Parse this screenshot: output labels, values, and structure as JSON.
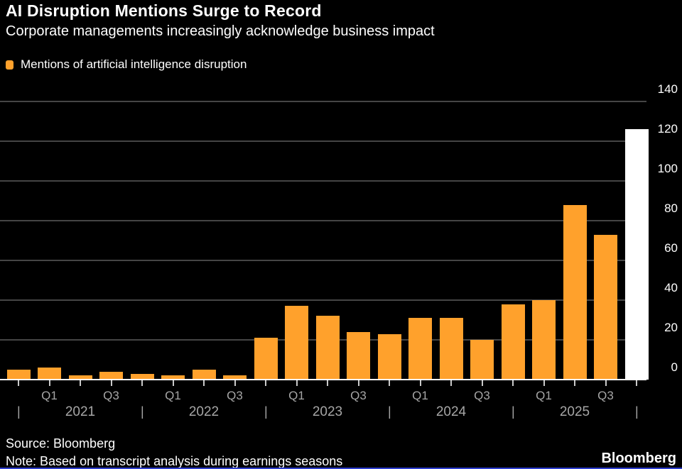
{
  "header": {
    "title": "AI Disruption Mentions Surge to Record",
    "subtitle": "Corporate managements increasingly acknowledge business impact"
  },
  "legend": {
    "label": "Mentions of artificial intelligence disruption",
    "swatch_color": "#FFA12C"
  },
  "chart_data": {
    "type": "bar",
    "title": "AI Disruption Mentions Surge to Record",
    "subtitle": "Corporate managements increasingly acknowledge business impact",
    "series_name": "Mentions of artificial intelligence disruption",
    "categories": [
      "2020 Q4",
      "2021 Q1",
      "2021 Q2",
      "2021 Q3",
      "2021 Q4",
      "2022 Q1",
      "2022 Q2",
      "2022 Q3",
      "2022 Q4",
      "2023 Q1",
      "2023 Q2",
      "2023 Q3",
      "2023 Q4",
      "2024 Q1",
      "2024 Q2",
      "2024 Q3",
      "2024 Q4",
      "2025 Q1",
      "2025 Q2",
      "2025 Q3",
      "2025 Q4"
    ],
    "values": [
      5,
      6,
      2,
      4,
      3,
      2,
      5,
      2,
      21,
      37,
      32,
      24,
      23,
      31,
      31,
      20,
      38,
      40,
      88,
      73,
      126
    ],
    "bar_color": "#FFA12C",
    "highlight_index": 20,
    "highlight_color": "#FFFFFF",
    "ylim": [
      0,
      140
    ],
    "yticks": [
      0,
      20,
      40,
      60,
      80,
      100,
      120,
      140
    ],
    "y_axis_side": "right",
    "grid": true,
    "legend_position": "top-left",
    "quarter_labels": [
      {
        "i": 1,
        "text": "Q1"
      },
      {
        "i": 3,
        "text": "Q3"
      },
      {
        "i": 5,
        "text": "Q1"
      },
      {
        "i": 7,
        "text": "Q3"
      },
      {
        "i": 9,
        "text": "Q1"
      },
      {
        "i": 11,
        "text": "Q3"
      },
      {
        "i": 13,
        "text": "Q1"
      },
      {
        "i": 15,
        "text": "Q3"
      },
      {
        "i": 17,
        "text": "Q1"
      },
      {
        "i": 19,
        "text": "Q3"
      }
    ],
    "year_dividers": [
      0,
      4,
      8,
      12,
      16,
      20
    ],
    "year_labels": [
      {
        "i": 2,
        "text": "2021"
      },
      {
        "i": 6,
        "text": "2022"
      },
      {
        "i": 10,
        "text": "2023"
      },
      {
        "i": 14,
        "text": "2024"
      },
      {
        "i": 18,
        "text": "2025"
      }
    ],
    "divider_glyph": "|"
  },
  "footer": {
    "source": "Source: Bloomberg",
    "note": "Note: Based on transcript analysis during earnings seasons",
    "brand": "Bloomberg"
  },
  "colors": {
    "background": "#000000",
    "gridline": "#454545",
    "axis_line": "#FFFFFF",
    "axis_text": "#A6A6A6",
    "y_tick_text": "#FFFFFF",
    "accent_bar": "#2E3ED0"
  }
}
